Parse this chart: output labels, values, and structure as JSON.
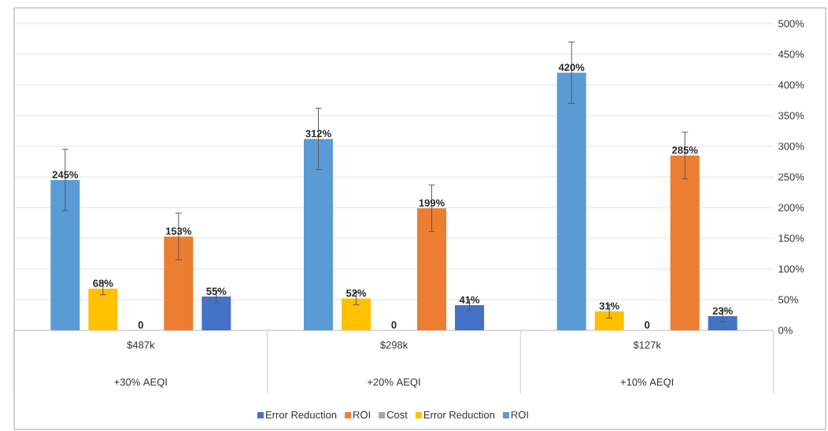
{
  "chart_data": {
    "type": "bar",
    "categories": [
      "$487k",
      "$298k",
      "$127k"
    ],
    "annotations": [
      "+30% AEQI",
      "+20% AEQI",
      "+10% AEQI"
    ],
    "series": [
      {
        "name": "ROI",
        "color": "#5b9bd5",
        "values": [
          245,
          312,
          420
        ],
        "errors": [
          50,
          50,
          50
        ],
        "value_labels": [
          "245%",
          "312%",
          "420%"
        ]
      },
      {
        "name": "Error Reduction",
        "color": "#ffc000",
        "values": [
          68,
          52,
          31
        ],
        "errors": [
          10,
          10,
          11
        ],
        "value_labels": [
          "68%",
          "52%",
          "31%"
        ]
      },
      {
        "name": "Cost",
        "color": "#a5a5a5",
        "values": [
          0,
          0,
          0
        ],
        "value_labels": [
          "0",
          "0",
          "0"
        ]
      },
      {
        "name": "ROI",
        "color": "#ed7d31",
        "values": [
          153,
          199,
          285
        ],
        "errors": [
          38,
          38,
          38
        ],
        "value_labels": [
          "153%",
          "199%",
          "285%"
        ]
      },
      {
        "name": "Error Reduction",
        "color": "#4472c4",
        "values": [
          55,
          41,
          23
        ],
        "errors": [
          10,
          9,
          9
        ],
        "value_labels": [
          "55%",
          "41%",
          "23%"
        ]
      }
    ],
    "ylim": [
      0,
      500
    ],
    "yticks": [
      {
        "value": 0,
        "label": "0%"
      },
      {
        "value": 50,
        "label": "50%"
      },
      {
        "value": 100,
        "label": "100%"
      },
      {
        "value": 150,
        "label": "150%"
      },
      {
        "value": 200,
        "label": "200%"
      },
      {
        "value": 250,
        "label": "250%"
      },
      {
        "value": 300,
        "label": "300%"
      },
      {
        "value": 350,
        "label": "350%"
      },
      {
        "value": 400,
        "label": "400%"
      },
      {
        "value": 450,
        "label": "450%"
      },
      {
        "value": 500,
        "label": "500%"
      }
    ],
    "grid": "y",
    "legend": "bottom"
  }
}
